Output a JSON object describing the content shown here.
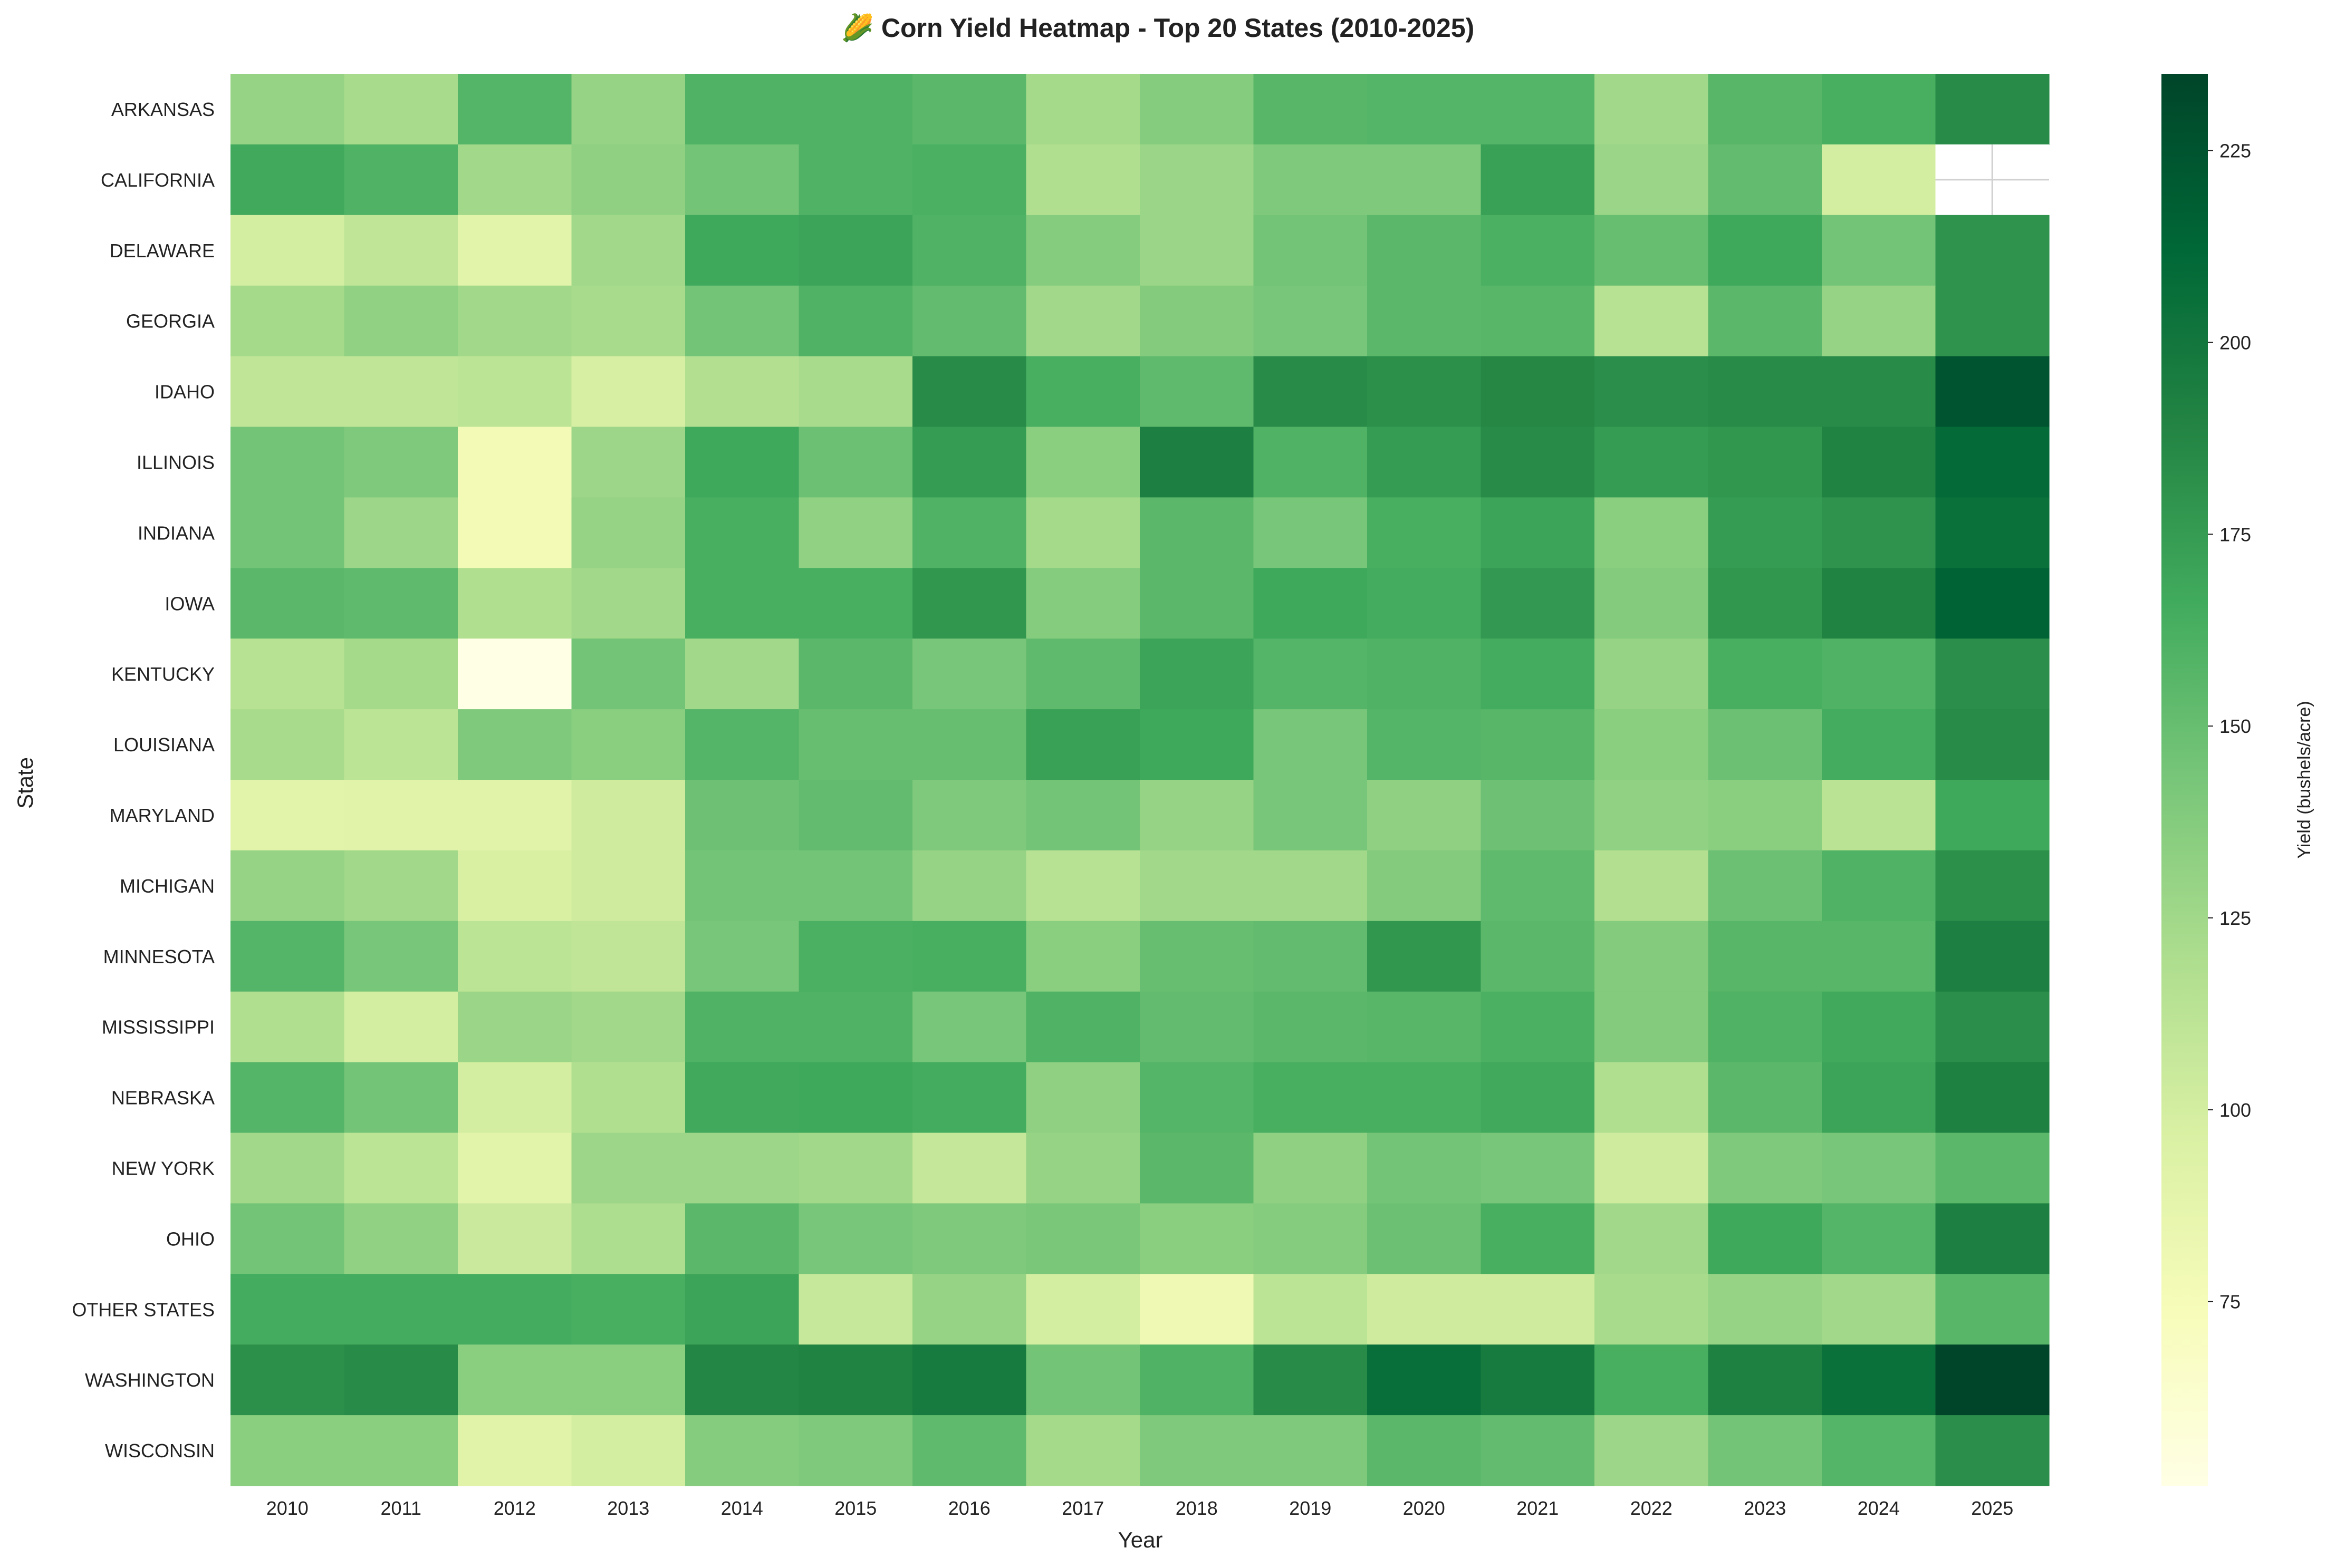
{
  "chart_data": {
    "type": "heatmap",
    "title": "🌽 Corn Yield Heatmap - Top 20 States (2010-2025)",
    "xlabel": "Year",
    "ylabel": "State",
    "colorbar_label": "Yield (bushels/acre)",
    "colorbar_ticks": [
      75,
      100,
      125,
      150,
      175,
      200,
      225
    ],
    "value_range": [
      51,
      235
    ],
    "colormap": "YlGn",
    "x": [
      "2010",
      "2011",
      "2012",
      "2013",
      "2014",
      "2015",
      "2016",
      "2017",
      "2018",
      "2019",
      "2020",
      "2021",
      "2022",
      "2023",
      "2024",
      "2025"
    ],
    "y": [
      "ARKANSAS",
      "CALIFORNIA",
      "DELAWARE",
      "GEORGIA",
      "IDAHO",
      "ILLINOIS",
      "INDIANA",
      "IOWA",
      "KENTUCKY",
      "LOUISIANA",
      "MARYLAND",
      "MICHIGAN",
      "MINNESOTA",
      "MISSISSIPPI",
      "NEBRASKA",
      "NEW YORK",
      "OHIO",
      "OTHER STATES",
      "WASHINGTON",
      "WISCONSIN"
    ],
    "values": [
      [
        130,
        122,
        158,
        130,
        160,
        160,
        155,
        123,
        137,
        157,
        158,
        158,
        125,
        157,
        163,
        185
      ],
      [
        167,
        160,
        125,
        133,
        145,
        160,
        162,
        118,
        128,
        140,
        140,
        172,
        128,
        152,
        100,
        null
      ],
      [
        100,
        110,
        90,
        125,
        168,
        170,
        160,
        137,
        128,
        145,
        155,
        162,
        150,
        168,
        145,
        180
      ],
      [
        123,
        132,
        125,
        122,
        145,
        160,
        152,
        125,
        138,
        143,
        155,
        157,
        115,
        155,
        130,
        180
      ],
      [
        110,
        110,
        112,
        98,
        117,
        122,
        185,
        163,
        153,
        185,
        182,
        187,
        183,
        185,
        185,
        225
      ],
      [
        145,
        140,
        77,
        127,
        168,
        148,
        175,
        135,
        193,
        160,
        175,
        185,
        175,
        178,
        190,
        210
      ],
      [
        145,
        127,
        77,
        130,
        163,
        132,
        160,
        123,
        155,
        143,
        163,
        170,
        135,
        175,
        180,
        205
      ],
      [
        155,
        153,
        118,
        125,
        163,
        163,
        178,
        137,
        155,
        168,
        165,
        177,
        138,
        178,
        190,
        215
      ],
      [
        115,
        123,
        51,
        145,
        125,
        155,
        143,
        153,
        170,
        158,
        160,
        165,
        130,
        163,
        160,
        183
      ],
      [
        122,
        112,
        140,
        135,
        158,
        150,
        150,
        172,
        168,
        143,
        158,
        157,
        135,
        148,
        165,
        185
      ],
      [
        90,
        92,
        92,
        103,
        147,
        152,
        140,
        145,
        130,
        143,
        133,
        147,
        132,
        135,
        113,
        168
      ],
      [
        130,
        125,
        97,
        102,
        145,
        145,
        130,
        115,
        125,
        125,
        138,
        153,
        117,
        148,
        160,
        182
      ],
      [
        158,
        143,
        112,
        110,
        143,
        162,
        163,
        135,
        150,
        152,
        178,
        155,
        138,
        157,
        157,
        193
      ],
      [
        118,
        100,
        128,
        125,
        160,
        160,
        143,
        160,
        152,
        155,
        157,
        162,
        138,
        160,
        167,
        183
      ],
      [
        158,
        145,
        100,
        118,
        167,
        168,
        165,
        133,
        158,
        163,
        163,
        167,
        118,
        155,
        170,
        192
      ],
      [
        125,
        112,
        90,
        127,
        127,
        125,
        108,
        130,
        155,
        133,
        145,
        143,
        103,
        140,
        143,
        155
      ],
      [
        145,
        132,
        105,
        120,
        155,
        143,
        140,
        142,
        135,
        137,
        148,
        163,
        125,
        168,
        158,
        193
      ],
      [
        165,
        165,
        165,
        163,
        170,
        107,
        130,
        100,
        80,
        112,
        103,
        103,
        122,
        130,
        125,
        157
      ],
      [
        182,
        185,
        135,
        135,
        188,
        190,
        197,
        145,
        160,
        185,
        207,
        197,
        163,
        192,
        205,
        235
      ],
      [
        135,
        135,
        92,
        100,
        137,
        140,
        153,
        123,
        140,
        140,
        155,
        152,
        127,
        145,
        158,
        183
      ]
    ]
  }
}
